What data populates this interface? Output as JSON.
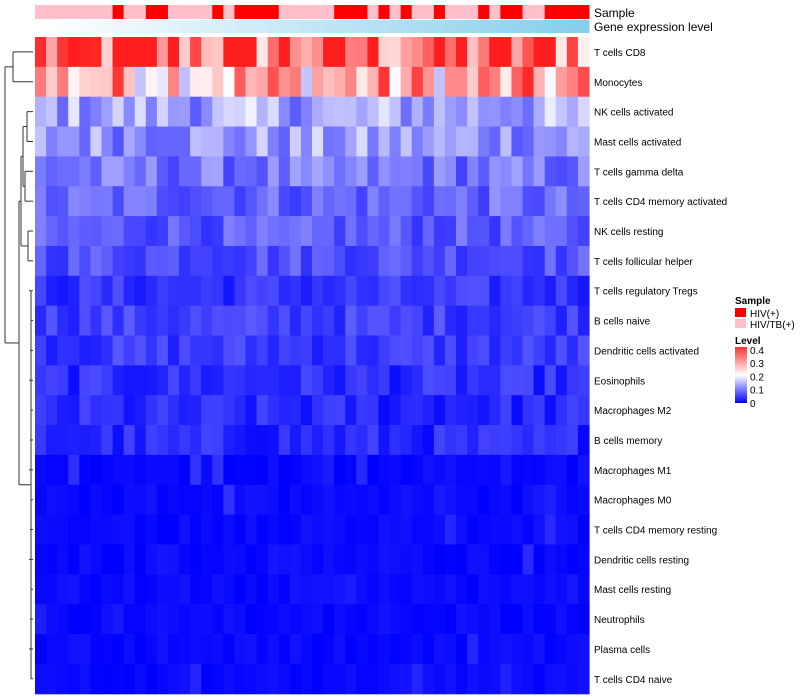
{
  "chart_data": {
    "type": "heatmap",
    "annotations": {
      "sample_label": "Sample",
      "expression_label": "Gene expression level"
    },
    "rows": [
      "T cells CD8",
      "Monocytes",
      "NK cells activated",
      "Mast cells activated",
      "T cells gamma delta",
      "T cells CD4 memory activated",
      "NK cells resting",
      "T cells follicular helper",
      "T cells regulatory  Tregs",
      "B cells naive",
      "Dendritic cells activated",
      "Eosinophils",
      "Macrophages M2",
      "B cells memory",
      "Macrophages M1",
      "Macrophages M0",
      "T cells CD4 memory resting",
      "Dendritic cells resting",
      "Mast cells resting",
      "Neutrophils",
      "Plasma cells",
      "T cells CD4 naive"
    ],
    "n_columns": 50,
    "row_means": [
      0.34,
      0.27,
      0.13,
      0.12,
      0.09,
      0.08,
      0.07,
      0.065,
      0.04,
      0.05,
      0.045,
      0.035,
      0.03,
      0.03,
      0.02,
      0.02,
      0.01,
      0.01,
      0.005,
      0.005,
      0.01,
      0.01
    ],
    "sample_groups": [
      "HIV/TB(+)",
      "HIV/TB(+)",
      "HIV/TB(+)",
      "HIV/TB(+)",
      "HIV/TB(+)",
      "HIV/TB(+)",
      "HIV/TB(+)",
      "HIV(+)",
      "HIV/TB(+)",
      "HIV/TB(+)",
      "HIV(+)",
      "HIV(+)",
      "HIV/TB(+)",
      "HIV/TB(+)",
      "HIV/TB(+)",
      "HIV/TB(+)",
      "HIV(+)",
      "HIV/TB(+)",
      "HIV(+)",
      "HIV(+)",
      "HIV(+)",
      "HIV(+)",
      "HIV/TB(+)",
      "HIV/TB(+)",
      "HIV/TB(+)",
      "HIV/TB(+)",
      "HIV/TB(+)",
      "HIV(+)",
      "HIV(+)",
      "HIV(+)",
      "HIV/TB(+)",
      "HIV(+)",
      "HIV/TB(+)",
      "HIV(+)",
      "HIV/TB(+)",
      "HIV/TB(+)",
      "HIV(+)",
      "HIV/TB(+)",
      "HIV/TB(+)",
      "HIV/TB(+)",
      "HIV(+)",
      "HIV/TB(+)",
      "HIV(+)",
      "HIV(+)",
      "HIV/TB(+)",
      "HIV/TB(+)",
      "HIV(+)",
      "HIV(+)",
      "HIV(+)",
      "HIV(+)"
    ],
    "legend": {
      "sample_title": "Sample",
      "sample_entries": [
        {
          "label": "HIV(+)",
          "color": "#ff0000"
        },
        {
          "label": "HIV/TB(+)",
          "color": "#ffc0cb"
        }
      ],
      "level_title": "Level",
      "level_ticks": [
        "0.4",
        "0.3",
        "0.2",
        "0.1",
        "0"
      ],
      "level_range": [
        0,
        0.4
      ]
    },
    "colors": {
      "low": "#0000ff",
      "mid": "#ffffff",
      "high": "#ff0000",
      "expression_start": "#ffffff",
      "expression_end": "#87ceeb"
    },
    "legend_placement": "right"
  }
}
